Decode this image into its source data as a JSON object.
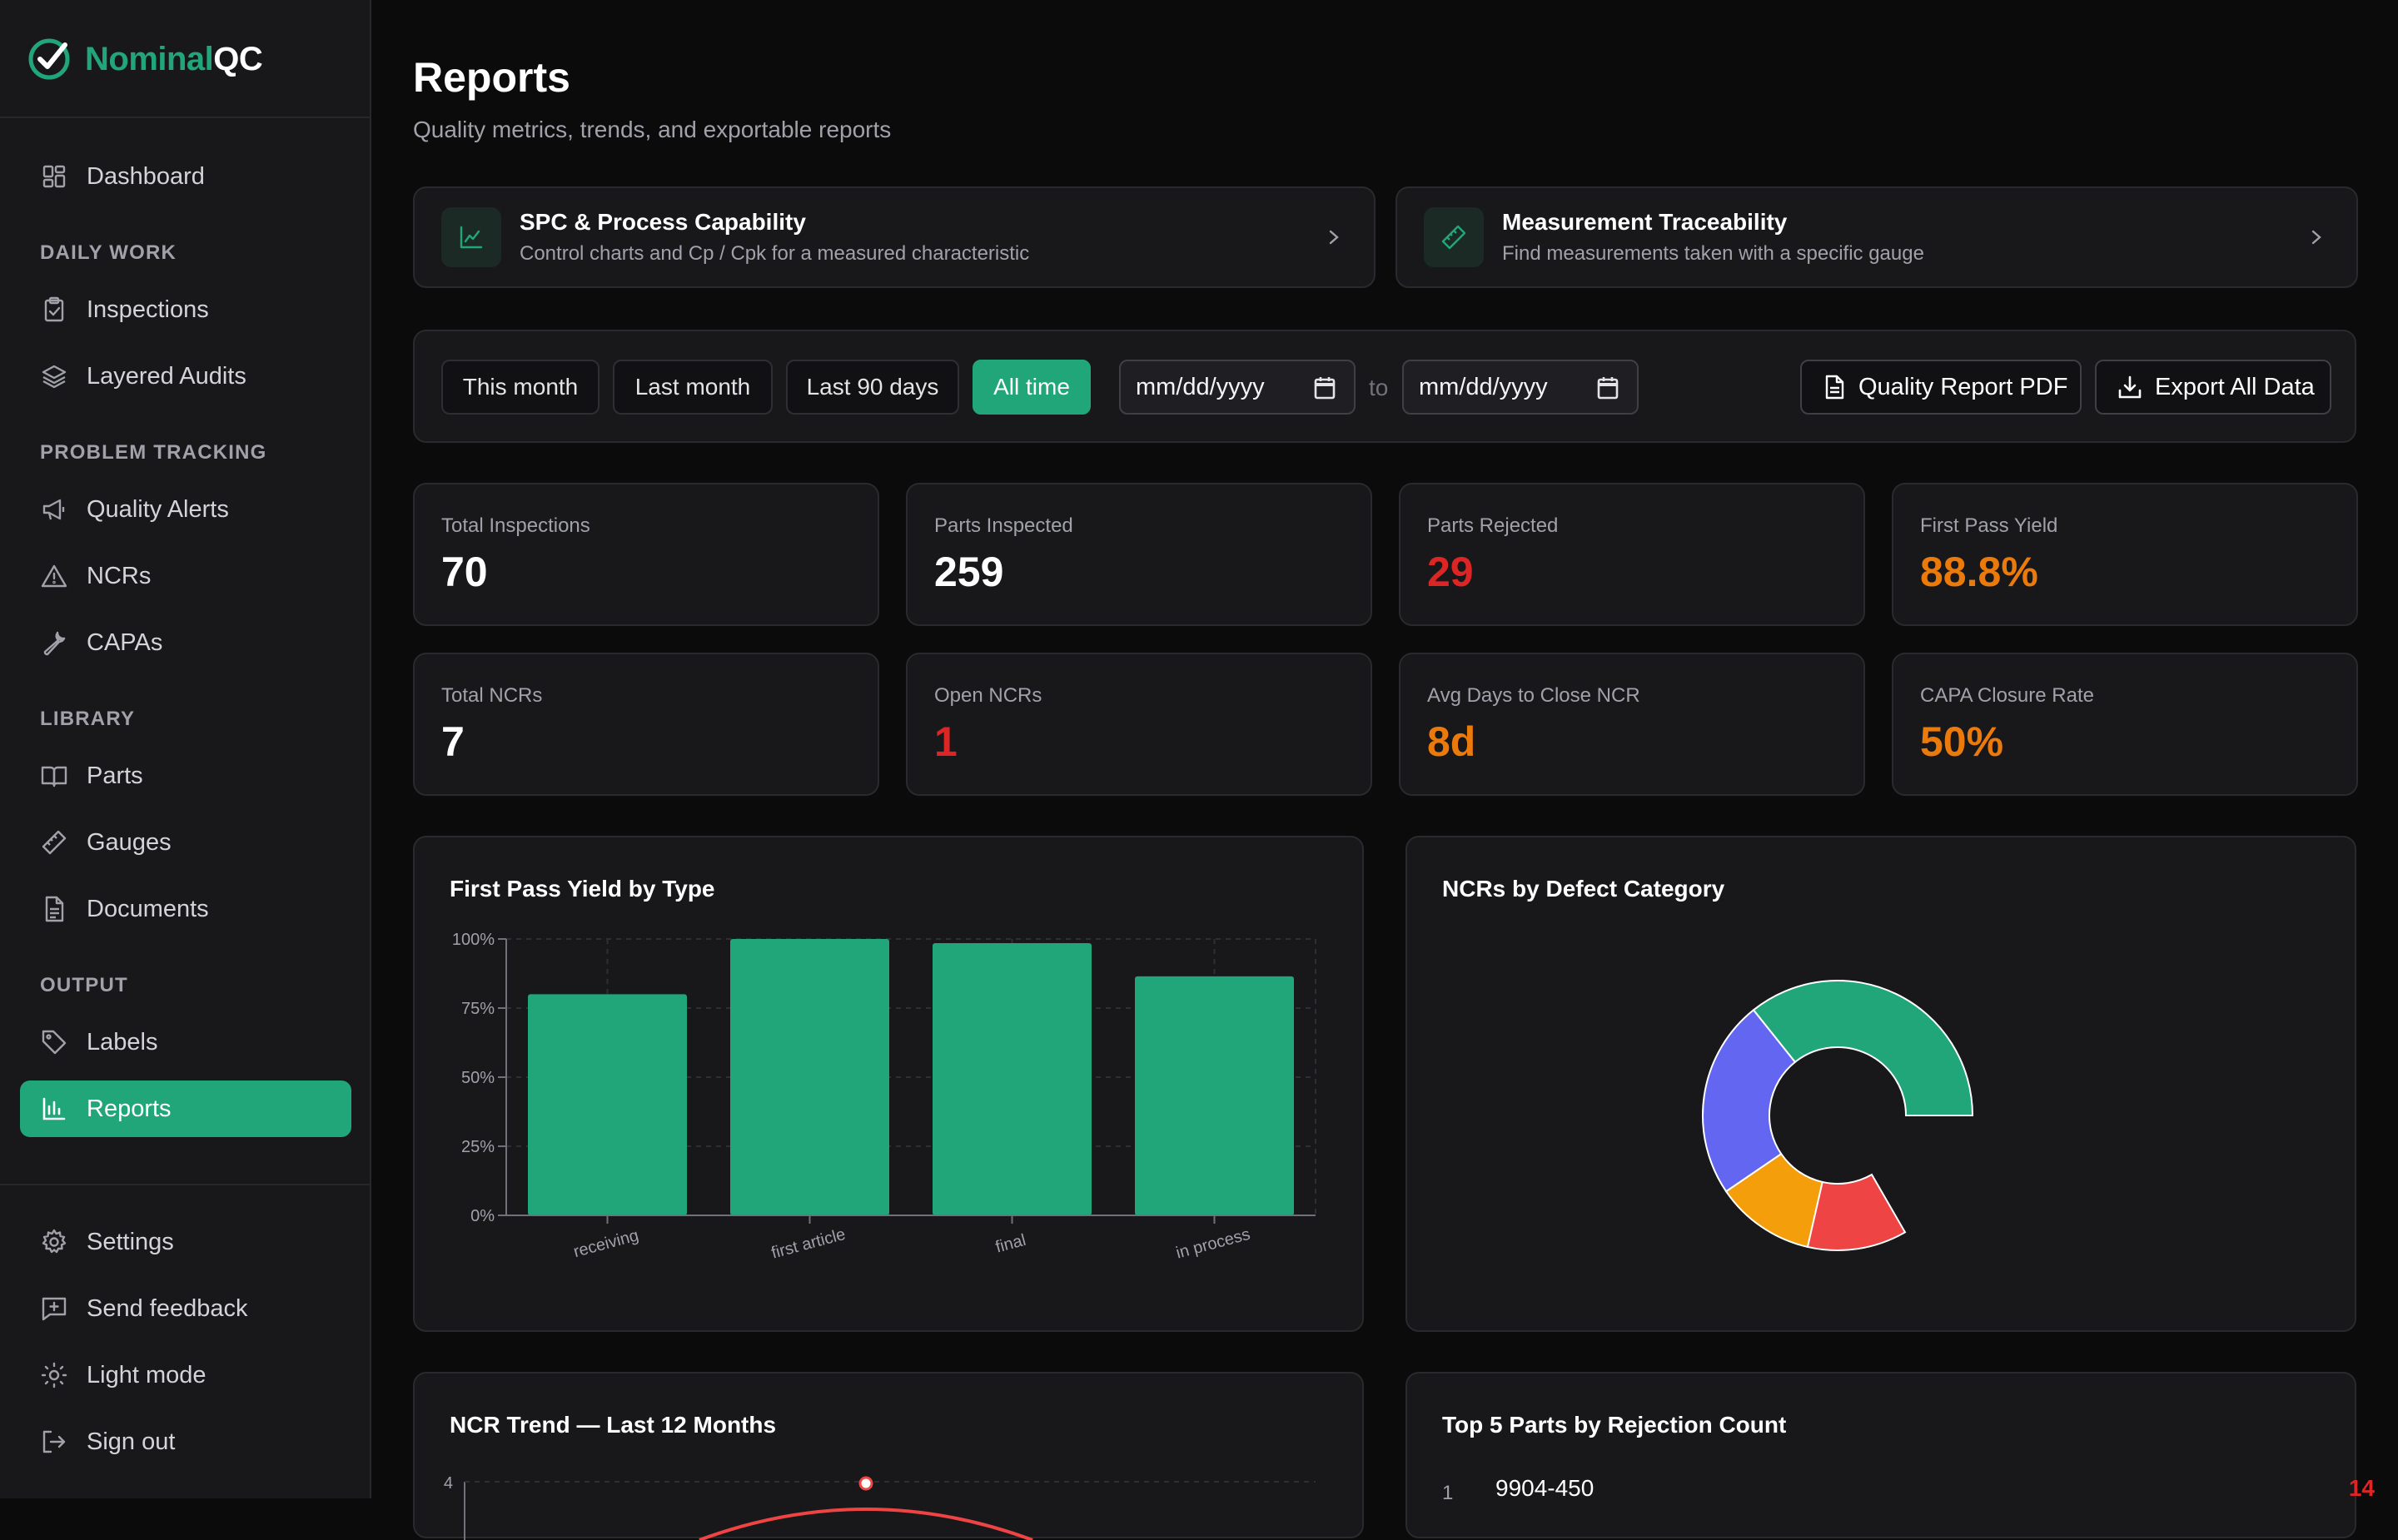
{
  "app": {
    "name_part1": "Nominal",
    "name_part2": "QC"
  },
  "sidebar": {
    "dashboard": "Dashboard",
    "sections": {
      "daily_work": "DAILY WORK",
      "problem_tracking": "PROBLEM TRACKING",
      "library": "LIBRARY",
      "output": "OUTPUT"
    },
    "items": {
      "inspections": "Inspections",
      "layered_audits": "Layered Audits",
      "quality_alerts": "Quality Alerts",
      "ncrs": "NCRs",
      "capas": "CAPAs",
      "parts": "Parts",
      "gauges": "Gauges",
      "documents": "Documents",
      "labels": "Labels",
      "reports": "Reports"
    },
    "footer": {
      "settings": "Settings",
      "send_feedback": "Send feedback",
      "light_mode": "Light mode",
      "sign_out": "Sign out"
    }
  },
  "page": {
    "title": "Reports",
    "subtitle": "Quality metrics, trends, and exportable reports"
  },
  "links": {
    "spc": {
      "title": "SPC & Process Capability",
      "desc": "Control charts and Cp / Cpk for a measured characteristic"
    },
    "trace": {
      "title": "Measurement Traceability",
      "desc": "Find measurements taken with a specific gauge"
    }
  },
  "filters": {
    "this_month": "This month",
    "last_month": "Last month",
    "last_90": "Last 90 days",
    "all_time": "All time",
    "date_from": "mm/dd/yyyy",
    "to": "to",
    "date_to": "mm/dd/yyyy",
    "pdf_button": "Quality Report PDF",
    "export_button": "Export All Data"
  },
  "stats": {
    "total_inspections": {
      "label": "Total Inspections",
      "value": "70"
    },
    "parts_inspected": {
      "label": "Parts Inspected",
      "value": "259"
    },
    "parts_rejected": {
      "label": "Parts Rejected",
      "value": "29"
    },
    "first_pass_yield": {
      "label": "First Pass Yield",
      "value": "88.8%"
    },
    "total_ncrs": {
      "label": "Total NCRs",
      "value": "7"
    },
    "open_ncrs": {
      "label": "Open NCRs",
      "value": "1"
    },
    "avg_days": {
      "label": "Avg Days to Close NCR",
      "value": "8d"
    },
    "capa_rate": {
      "label": "CAPA Closure Rate",
      "value": "50%"
    }
  },
  "colors": {
    "accent": "#21a67a",
    "danger": "#dc2626",
    "warning": "#ea7a0c",
    "indigo": "#6366f1",
    "amber": "#f59e0b",
    "red": "#ef4444"
  },
  "panels": {
    "fpy_title": "First Pass Yield by Type",
    "ncr_defect_title": "NCRs by Defect Category",
    "ncr_trend_title": "NCR Trend — Last 12 Months",
    "top5_title": "Top 5 Parts by Rejection Count"
  },
  "top_parts": [
    {
      "rank": "1",
      "part": "9904-450",
      "count": "14"
    }
  ],
  "chart_data": [
    {
      "type": "bar",
      "categories": [
        "receiving",
        "first article",
        "final",
        "in process"
      ],
      "values": [
        80,
        100,
        98.5,
        86.5
      ],
      "ylim": [
        0,
        100
      ],
      "yticks": [
        "0%",
        "25%",
        "50%",
        "75%",
        "100%"
      ],
      "grid": true
    },
    {
      "type": "pie",
      "donut": true,
      "partial_circle": true,
      "slice_colors": [
        "#21a67a",
        "#6366f1",
        "#f59e0b",
        "#ef4444"
      ],
      "values": [
        3,
        2,
        1,
        1
      ]
    },
    {
      "type": "line",
      "ytick_visible": "4",
      "peak_value": 4
    }
  ]
}
